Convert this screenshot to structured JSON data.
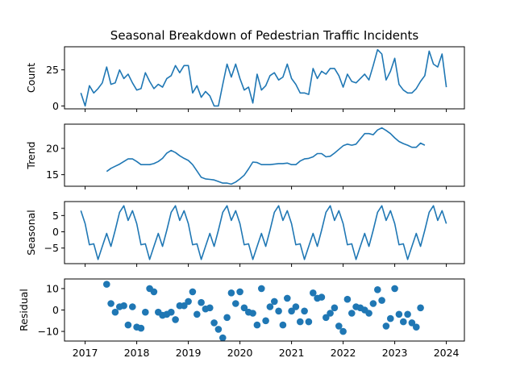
{
  "chart_data": {
    "type": "line",
    "title": "Seasonal Breakdown of Pedestrian Traffic Incidents",
    "xlabel": "",
    "x_start": "2016-12",
    "frequency": "monthly",
    "x_ticks": [
      "2017",
      "2018",
      "2019",
      "2020",
      "2021",
      "2022",
      "2023",
      "2024"
    ],
    "xlim": [
      2016.6,
      2024.35
    ],
    "color": "#1f77b4",
    "panels": [
      {
        "name": "count",
        "type": "line",
        "ylabel": "Count",
        "ylim": [
          -2,
          41
        ],
        "yticks": [
          0,
          25
        ],
        "ytick_labels": [
          "0",
          "25"
        ],
        "start_index": 0,
        "values": [
          9,
          0,
          14,
          9,
          12,
          16,
          27,
          15,
          16,
          25,
          19,
          22,
          16,
          11,
          12,
          23,
          17,
          12,
          15,
          13,
          19,
          21,
          28,
          23,
          28,
          28,
          9,
          14,
          6,
          10,
          7,
          0,
          0,
          15,
          29,
          20,
          29,
          19,
          11,
          13,
          2,
          22,
          11,
          14,
          21,
          23,
          18,
          20,
          29,
          19,
          15,
          9,
          9,
          8,
          26,
          19,
          24,
          22,
          26,
          26,
          21,
          13,
          22,
          17,
          16,
          19,
          22,
          18,
          28,
          39,
          36,
          18,
          24,
          33,
          15,
          11,
          9,
          9,
          12,
          17,
          21,
          38,
          29,
          27,
          36,
          13
        ]
      },
      {
        "name": "trend",
        "type": "line",
        "ylabel": "Trend",
        "ylim": [
          12.8,
          24.6
        ],
        "yticks": [
          15,
          20
        ],
        "ytick_labels": [
          "15",
          "20"
        ],
        "start_index": 6,
        "values": [
          15.6,
          16.2,
          16.6,
          17.0,
          17.5,
          18.0,
          18.0,
          17.5,
          16.9,
          16.9,
          16.9,
          17.1,
          17.5,
          18.1,
          19.1,
          19.6,
          19.2,
          18.6,
          18.1,
          17.7,
          16.9,
          15.7,
          14.5,
          14.2,
          14.1,
          14.0,
          13.7,
          13.4,
          13.4,
          13.2,
          13.6,
          14.2,
          14.9,
          16.1,
          17.4,
          17.3,
          16.9,
          16.9,
          16.9,
          17.0,
          17.1,
          17.1,
          17.2,
          16.9,
          16.9,
          17.6,
          18.0,
          18.1,
          18.4,
          19.0,
          19.0,
          18.4,
          18.5,
          19.1,
          19.8,
          20.5,
          20.8,
          20.6,
          20.8,
          21.8,
          22.8,
          22.8,
          22.6,
          23.5,
          23.9,
          23.4,
          22.8,
          22.0,
          21.3,
          20.9,
          20.6,
          20.2,
          20.2,
          21.0,
          20.6
        ]
      },
      {
        "name": "seasonal",
        "type": "line",
        "ylabel": "Seasonal",
        "ylim": [
          -9.8,
          9.3
        ],
        "yticks": [
          -5,
          0,
          5
        ],
        "ytick_labels": [
          "−5",
          "0",
          "5"
        ],
        "start_index": 0,
        "pattern": [
          6.5,
          2.5,
          -4.0,
          -3.7,
          -8.5,
          -4.5,
          -0.5,
          -4.5,
          0.5,
          6.0,
          8.0,
          3.5
        ],
        "length": 86
      },
      {
        "name": "residual",
        "type": "scatter",
        "ylabel": "Residual",
        "ylim": [
          -14.5,
          14.5
        ],
        "yticks": [
          -10,
          0,
          10
        ],
        "ytick_labels": [
          "−10",
          "0",
          "10"
        ],
        "start_index": 6,
        "values": [
          12,
          3,
          -1,
          1.5,
          2,
          -7,
          1.5,
          -8,
          -8.5,
          -1,
          10,
          8.5,
          -1,
          -2.5,
          -2,
          -1,
          -4.5,
          2,
          2,
          4,
          8.5,
          -2,
          3.5,
          0.5,
          1,
          -6,
          -9,
          -13,
          -3.5,
          8,
          3,
          8.5,
          1,
          -1,
          -1.5,
          -7,
          10,
          -5,
          1.5,
          4,
          -0.5,
          -7,
          5.5,
          -0.5,
          1.5,
          -5.5,
          -0.5,
          -5.5,
          8,
          5.5,
          6,
          -3.5,
          -1.5,
          1,
          -7.5,
          -10,
          5,
          -1.5,
          1.5,
          1,
          0,
          -1.5,
          3,
          9.5,
          4.5,
          -7.5,
          -4,
          10,
          -2,
          -5.5,
          -2,
          -6,
          -8,
          1
        ]
      }
    ]
  }
}
